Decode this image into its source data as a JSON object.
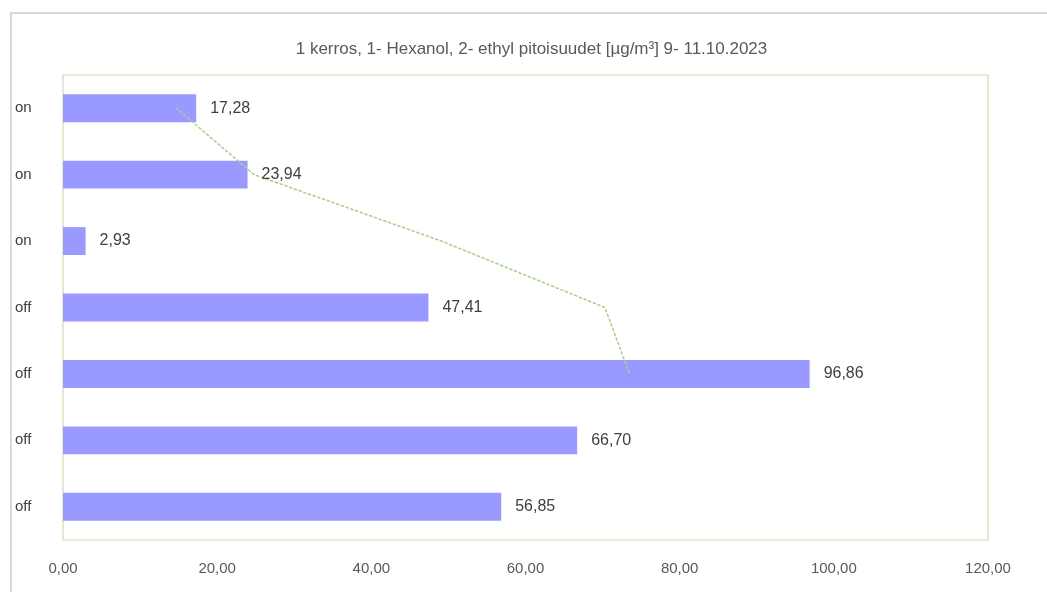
{
  "chart_data": {
    "type": "bar",
    "orientation": "horizontal",
    "title": "1 kerros, 1- Hexanol, 2- ethyl pitoisuudet [µg/m³] 9- 11.10.2023",
    "categories": [
      "on",
      "on",
      "on",
      "off",
      "off",
      "off",
      "off"
    ],
    "series": [
      {
        "color": "#9999ff",
        "values": [
          17.28,
          23.94,
          2.93,
          47.41,
          96.86,
          66.7,
          56.85
        ],
        "value_labels": [
          "17,28",
          "23,94",
          "2,93",
          "47,41",
          "96,86",
          "66,70",
          "56,85"
        ]
      },
      {
        "type": "line",
        "color": "#a9d18e",
        "line_style": "dotted",
        "marker": "none",
        "values": [
          14.7,
          24.8,
          49.1,
          70.3,
          73.5,
          null,
          null
        ]
      }
    ],
    "xlim": [
      0,
      120
    ],
    "xticks": [
      {
        "value": 0,
        "label": "0,00"
      },
      {
        "value": 20,
        "label": "20,00"
      },
      {
        "value": 40,
        "label": "40,00"
      },
      {
        "value": 60,
        "label": "60,00"
      },
      {
        "value": 80,
        "label": "80,00"
      },
      {
        "value": 100,
        "label": "100,00"
      },
      {
        "value": 120,
        "label": "120,00"
      }
    ],
    "grid": false,
    "legend": false
  }
}
